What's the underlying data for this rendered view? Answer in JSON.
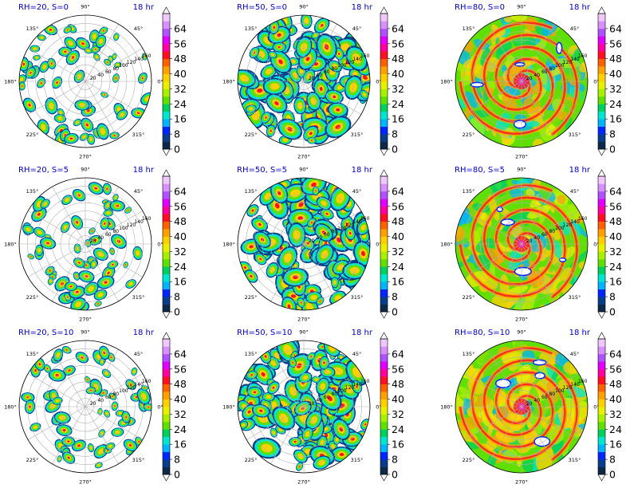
{
  "figure": {
    "colorbar_ticks": [
      "0",
      "8",
      "16",
      "24",
      "32",
      "40",
      "48",
      "56",
      "64"
    ],
    "angle_labels": [
      "0°",
      "45°",
      "90°",
      "135°",
      "180°",
      "225°",
      "270°",
      "315°"
    ],
    "radial_labels": [
      "20",
      "40",
      "60",
      "80",
      "100",
      "120",
      "140",
      "160"
    ],
    "colors": {
      "title_text": "#0000cc",
      "levels": [
        "#0b2a4a",
        "#0a3c8c",
        "#0026ff",
        "#00b4ff",
        "#00e5d0",
        "#00d060",
        "#5fe000",
        "#a8f000",
        "#e8f000",
        "#ffd000",
        "#ffa000",
        "#ff6000",
        "#ff1020",
        "#ff00a0",
        "#e000ff",
        "#b050ff",
        "#d890ff",
        "#f0c8ff"
      ]
    }
  },
  "chart_data": [
    {
      "type": "heatmap",
      "title": "RH=20, S=0",
      "time_label": "18 hr",
      "rh": 20,
      "s": 0,
      "colorbar_range": [
        0,
        64
      ]
    },
    {
      "type": "heatmap",
      "title": "RH=50, S=0",
      "time_label": "18 hr",
      "rh": 50,
      "s": 0,
      "colorbar_range": [
        0,
        64
      ]
    },
    {
      "type": "heatmap",
      "title": "RH=80, S=0",
      "time_label": "18 hr",
      "rh": 80,
      "s": 0,
      "colorbar_range": [
        0,
        64
      ]
    },
    {
      "type": "heatmap",
      "title": "RH=20, S=5",
      "time_label": "18 hr",
      "rh": 20,
      "s": 5,
      "colorbar_range": [
        0,
        64
      ]
    },
    {
      "type": "heatmap",
      "title": "RH=50, S=5",
      "time_label": "18 hr",
      "rh": 50,
      "s": 5,
      "colorbar_range": [
        0,
        64
      ]
    },
    {
      "type": "heatmap",
      "title": "RH=80, S=5",
      "time_label": "18 hr",
      "rh": 80,
      "s": 5,
      "colorbar_range": [
        0,
        64
      ]
    },
    {
      "type": "heatmap",
      "title": "RH=20, S=10",
      "time_label": "18 hr",
      "rh": 20,
      "s": 10,
      "colorbar_range": [
        0,
        64
      ]
    },
    {
      "type": "heatmap",
      "title": "RH=50, S=10",
      "time_label": "18 hr",
      "rh": 50,
      "s": 10,
      "colorbar_range": [
        0,
        64
      ]
    },
    {
      "type": "heatmap",
      "title": "RH=80, S=10",
      "time_label": "18 hr",
      "rh": 80,
      "s": 10,
      "colorbar_range": [
        0,
        64
      ]
    }
  ]
}
